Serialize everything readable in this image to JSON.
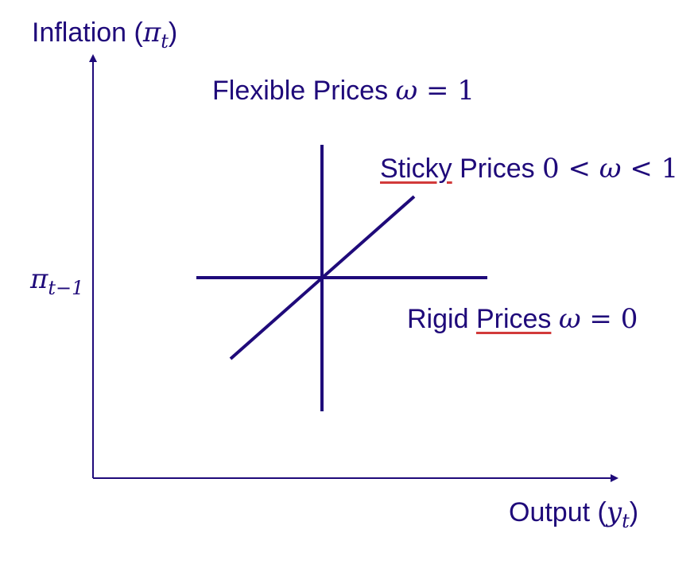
{
  "colors": {
    "ink": "#1f0a7a",
    "spellcheck": "#d23a3a"
  },
  "y_axis": {
    "label": "Inflation (",
    "symbol": "π",
    "subscript": "t",
    "close": ")"
  },
  "x_axis": {
    "label": "Output (",
    "symbol": "y",
    "subscript": "t",
    "close": ")"
  },
  "tick": {
    "symbol": "π",
    "subscript": "t−1"
  },
  "curves": {
    "flexible": {
      "text": "Flexible Prices ",
      "math": "ω",
      "eq": " = ",
      "value": "1"
    },
    "sticky": {
      "word1": "Sticky",
      "word2": " Prices ",
      "lo": "0",
      "lt1": " < ",
      "math": "ω",
      "lt2": " < ",
      "hi": "1"
    },
    "rigid": {
      "word1": "Rigid ",
      "word2": "Prices",
      "space": " ",
      "math": "ω",
      "eq": " = ",
      "value": "0"
    }
  }
}
